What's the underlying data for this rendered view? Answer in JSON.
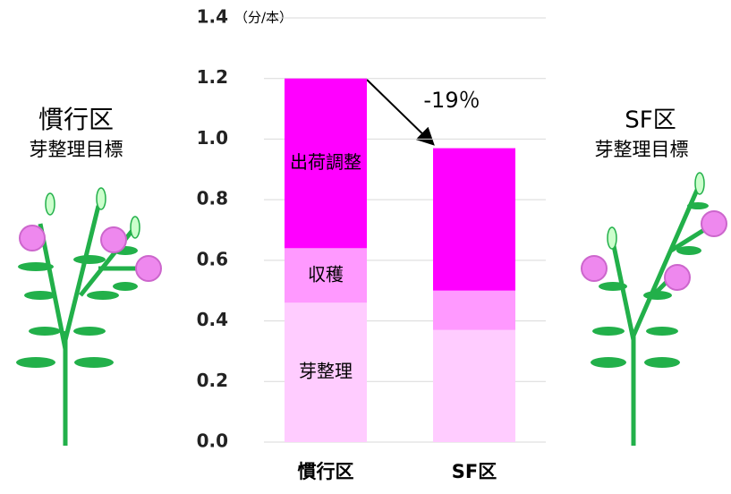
{
  "chart_data": {
    "type": "stacked_bar",
    "unit_label": "（分/本）",
    "categories": [
      "慣行区",
      "SF区"
    ],
    "series": [
      {
        "name": "芽整理",
        "color": "#ffccff",
        "values": [
          0.46,
          0.37
        ]
      },
      {
        "name": "収穫",
        "color": "#ff99ff",
        "values": [
          0.18,
          0.13
        ]
      },
      {
        "name": "出荷調整",
        "color": "#ff00ff",
        "values": [
          0.56,
          0.47
        ]
      }
    ],
    "ylim": [
      0,
      1.4
    ],
    "yticks": [
      {
        "value": 0,
        "label": "0.0"
      },
      {
        "value": 0.2,
        "label": "0.2"
      },
      {
        "value": 0.4,
        "label": "0.4"
      },
      {
        "value": 0.6,
        "label": "0.6"
      },
      {
        "value": 0.8,
        "label": "0.8"
      },
      {
        "value": 1.0,
        "label": "1.0"
      },
      {
        "value": 1.2,
        "label": "1.2"
      },
      {
        "value": 1.4,
        "label": "1.4"
      }
    ],
    "grid": true,
    "annotation": "-19％",
    "left_panel": {
      "title": "慣行区",
      "subtitle": "芽整理目標"
    },
    "right_panel": {
      "title": "SF区",
      "subtitle": "芽整理目標"
    }
  }
}
